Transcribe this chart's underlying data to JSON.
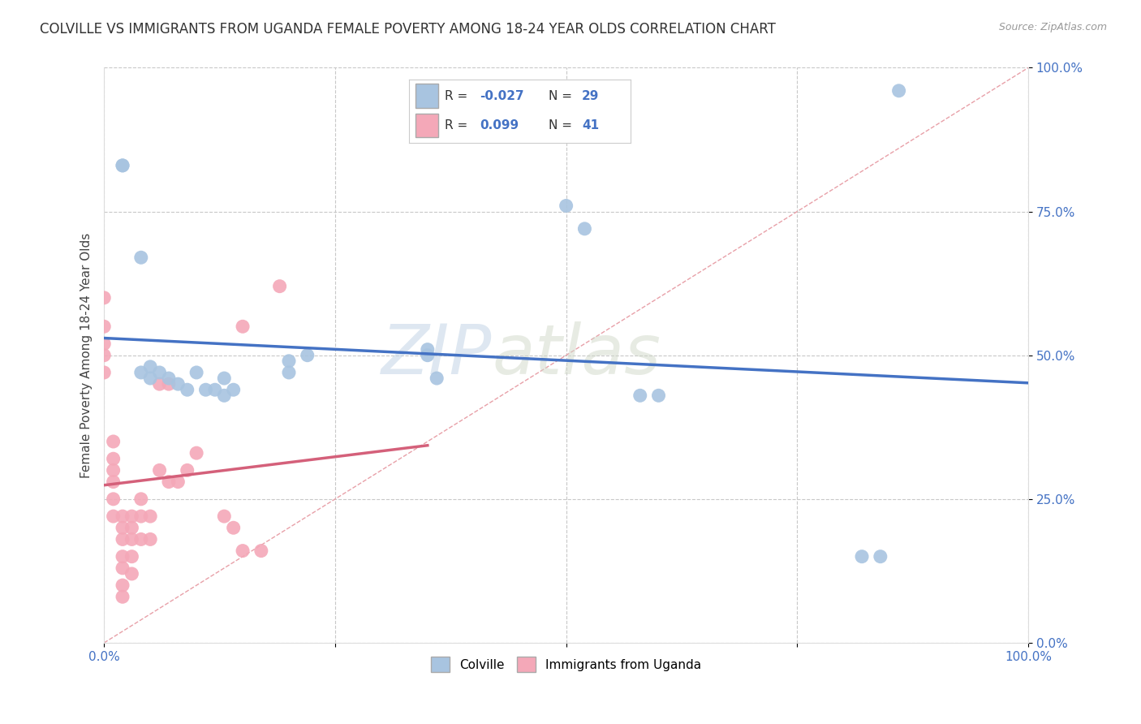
{
  "title": "COLVILLE VS IMMIGRANTS FROM UGANDA FEMALE POVERTY AMONG 18-24 YEAR OLDS CORRELATION CHART",
  "source": "Source: ZipAtlas.com",
  "ylabel": "Female Poverty Among 18-24 Year Olds",
  "legend_labels": [
    "Colville",
    "Immigrants from Uganda"
  ],
  "legend_r": [
    -0.027,
    0.099
  ],
  "legend_n": [
    29,
    41
  ],
  "colville_color": "#a8c4e0",
  "uganda_color": "#f4a8b8",
  "colville_line_color": "#4472c4",
  "uganda_line_color": "#d4607a",
  "watermark_zip": "ZIP",
  "watermark_atlas": "atlas",
  "colville_x": [
    0.02,
    0.02,
    0.04,
    0.04,
    0.05,
    0.05,
    0.06,
    0.07,
    0.08,
    0.09,
    0.1,
    0.11,
    0.12,
    0.13,
    0.13,
    0.14,
    0.2,
    0.2,
    0.22,
    0.35,
    0.35,
    0.36,
    0.5,
    0.52,
    0.58,
    0.6,
    0.82,
    0.84,
    0.86
  ],
  "colville_y": [
    0.83,
    0.83,
    0.67,
    0.47,
    0.48,
    0.46,
    0.47,
    0.46,
    0.45,
    0.44,
    0.47,
    0.44,
    0.44,
    0.46,
    0.43,
    0.44,
    0.49,
    0.47,
    0.5,
    0.51,
    0.5,
    0.46,
    0.76,
    0.72,
    0.43,
    0.43,
    0.15,
    0.15,
    0.96
  ],
  "uganda_x": [
    0.0,
    0.0,
    0.0,
    0.0,
    0.0,
    0.01,
    0.01,
    0.01,
    0.01,
    0.01,
    0.01,
    0.02,
    0.02,
    0.02,
    0.02,
    0.02,
    0.02,
    0.02,
    0.03,
    0.03,
    0.03,
    0.03,
    0.03,
    0.04,
    0.04,
    0.04,
    0.05,
    0.05,
    0.06,
    0.06,
    0.07,
    0.07,
    0.08,
    0.09,
    0.1,
    0.13,
    0.14,
    0.15,
    0.15,
    0.17,
    0.19
  ],
  "uganda_y": [
    0.6,
    0.55,
    0.52,
    0.5,
    0.47,
    0.35,
    0.32,
    0.3,
    0.28,
    0.25,
    0.22,
    0.22,
    0.2,
    0.18,
    0.15,
    0.13,
    0.1,
    0.08,
    0.22,
    0.2,
    0.18,
    0.15,
    0.12,
    0.25,
    0.22,
    0.18,
    0.22,
    0.18,
    0.3,
    0.45,
    0.45,
    0.28,
    0.28,
    0.3,
    0.33,
    0.22,
    0.2,
    0.55,
    0.16,
    0.16,
    0.62
  ],
  "xlim": [
    0.0,
    1.0
  ],
  "ylim": [
    0.0,
    1.0
  ],
  "yticks": [
    0.0,
    0.25,
    0.5,
    0.75,
    1.0
  ],
  "xticks": [
    0.0,
    0.25,
    0.5,
    0.75,
    1.0
  ],
  "grid_color": "#c8c8c8",
  "background_color": "#ffffff",
  "title_fontsize": 12,
  "axis_fontsize": 11,
  "tick_fontsize": 11
}
